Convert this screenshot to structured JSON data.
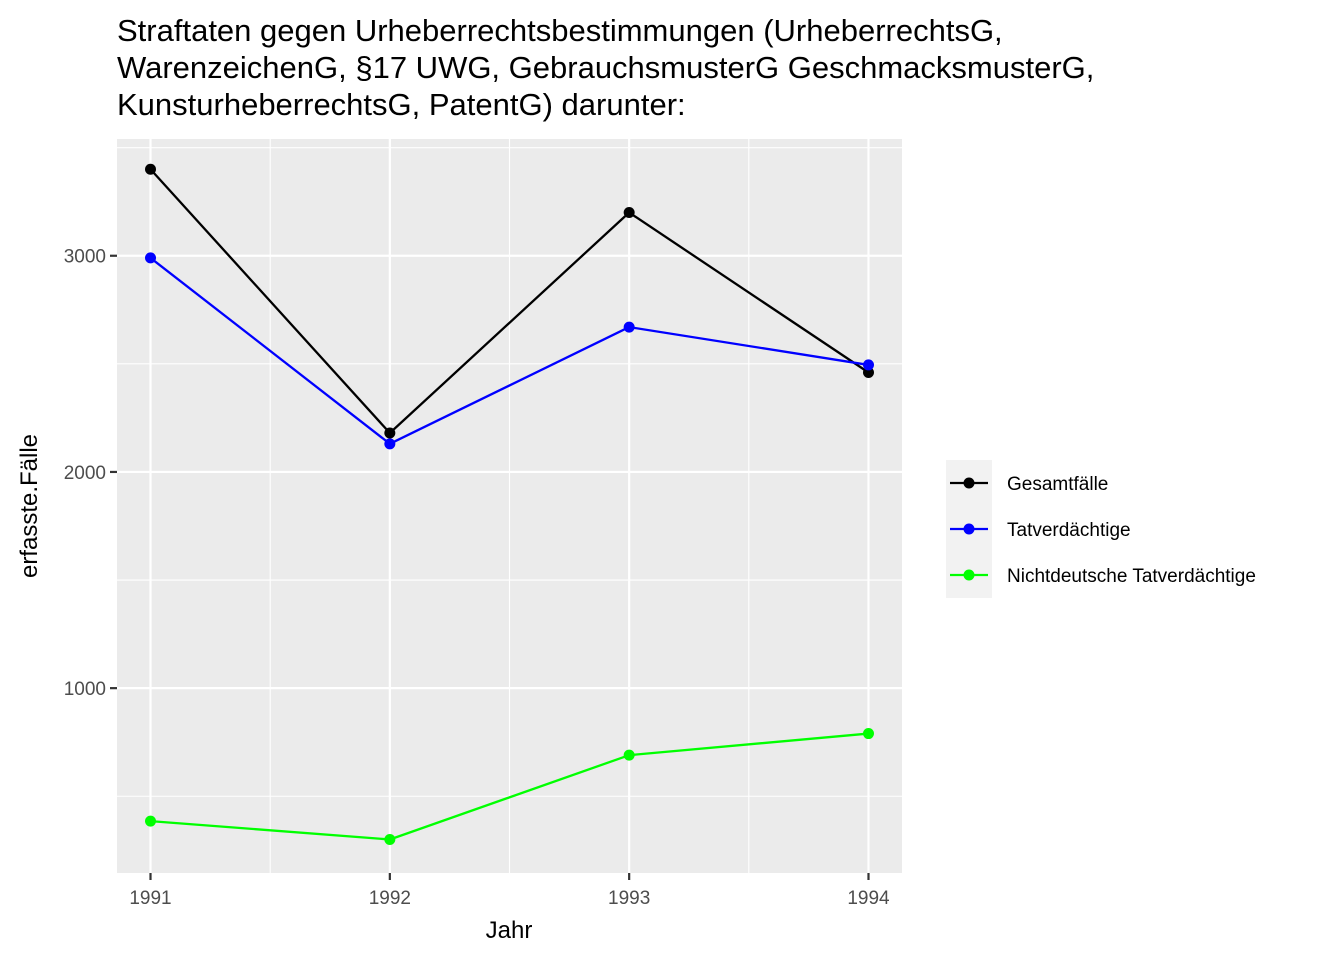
{
  "chart_data": {
    "type": "line",
    "title_lines": [
      "Straftaten gegen Urheberrechtsbestimmungen (UrheberrechtsG,",
      "WarenzeichenG, §17 UWG, GebrauchsmusterG GeschmacksmusterG,",
      "KunsturheberrechtsG, PatentG) darunter:"
    ],
    "xlabel": "Jahr",
    "ylabel": "erfasste.Fälle",
    "x": [
      1991,
      1992,
      1993,
      1994
    ],
    "x_tick_labels": [
      "1991",
      "1992",
      "1993",
      "1994"
    ],
    "y_ticks": [
      1000,
      2000,
      3000
    ],
    "y_tick_labels": [
      "1000",
      "2000",
      "3000"
    ],
    "xlim": [
      1990.86,
      1994.14
    ],
    "ylim": [
      145,
      3540
    ],
    "grid": true,
    "legend_position": "right",
    "series": [
      {
        "name": "Gesamtfälle",
        "color": "#000000",
        "values": [
          3400,
          2180,
          3200,
          2460
        ]
      },
      {
        "name": "Tatverdächtige",
        "color": "#0000ff",
        "values": [
          2990,
          2130,
          2670,
          2495
        ]
      },
      {
        "name": "Nichtdeutsche Tatverdächtige",
        "color": "#00ff00",
        "values": [
          385,
          300,
          690,
          790
        ]
      }
    ]
  }
}
